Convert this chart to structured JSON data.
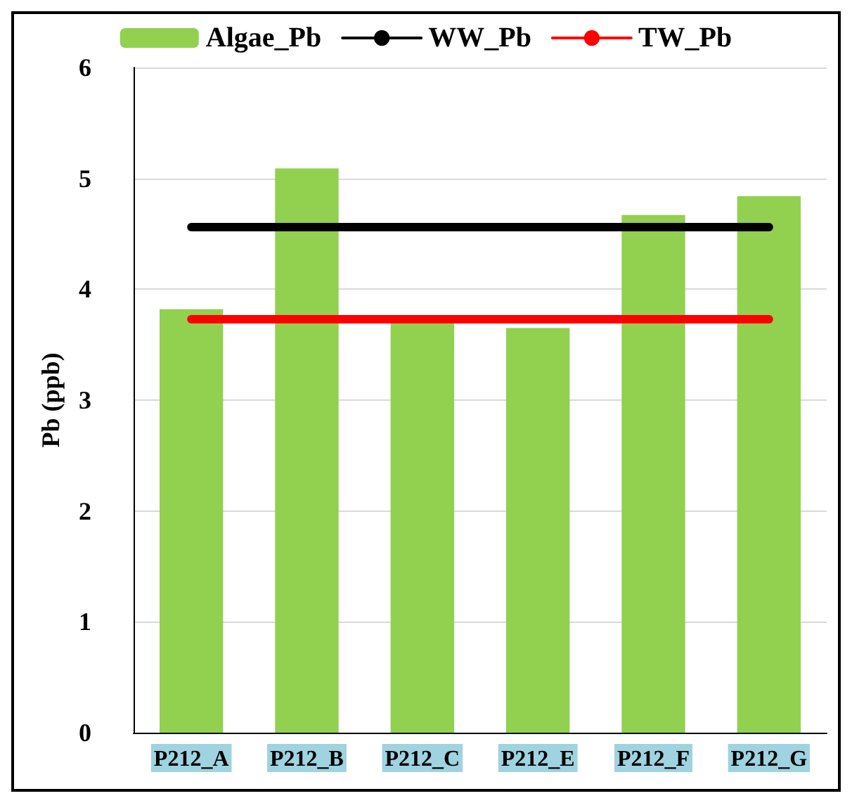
{
  "chart_data": {
    "type": "bar",
    "ylabel": "Pb (ppb)",
    "categories": [
      "P212_A",
      "P212_B",
      "P212_C",
      "P212_E",
      "P212_F",
      "P212_G"
    ],
    "series": [
      {
        "name": "Algae_Pb",
        "color": "#92d050",
        "values": [
          3.82,
          5.09,
          3.7,
          3.65,
          4.67,
          4.84
        ]
      },
      {
        "name": "WW_Pb",
        "type": "line",
        "color": "#000000",
        "values": [
          4.56,
          4.56,
          4.56,
          4.56,
          4.56,
          4.56
        ]
      },
      {
        "name": "TW_Pb",
        "type": "line",
        "color": "#ff0000",
        "values": [
          3.73,
          3.73,
          3.73,
          3.73,
          3.73,
          3.73
        ]
      }
    ],
    "ylim": [
      0,
      6
    ],
    "yticks": [
      0,
      1,
      2,
      3,
      4,
      5,
      6
    ],
    "grid": "y",
    "legend": "top",
    "marker": "none",
    "line_style": "solid"
  }
}
